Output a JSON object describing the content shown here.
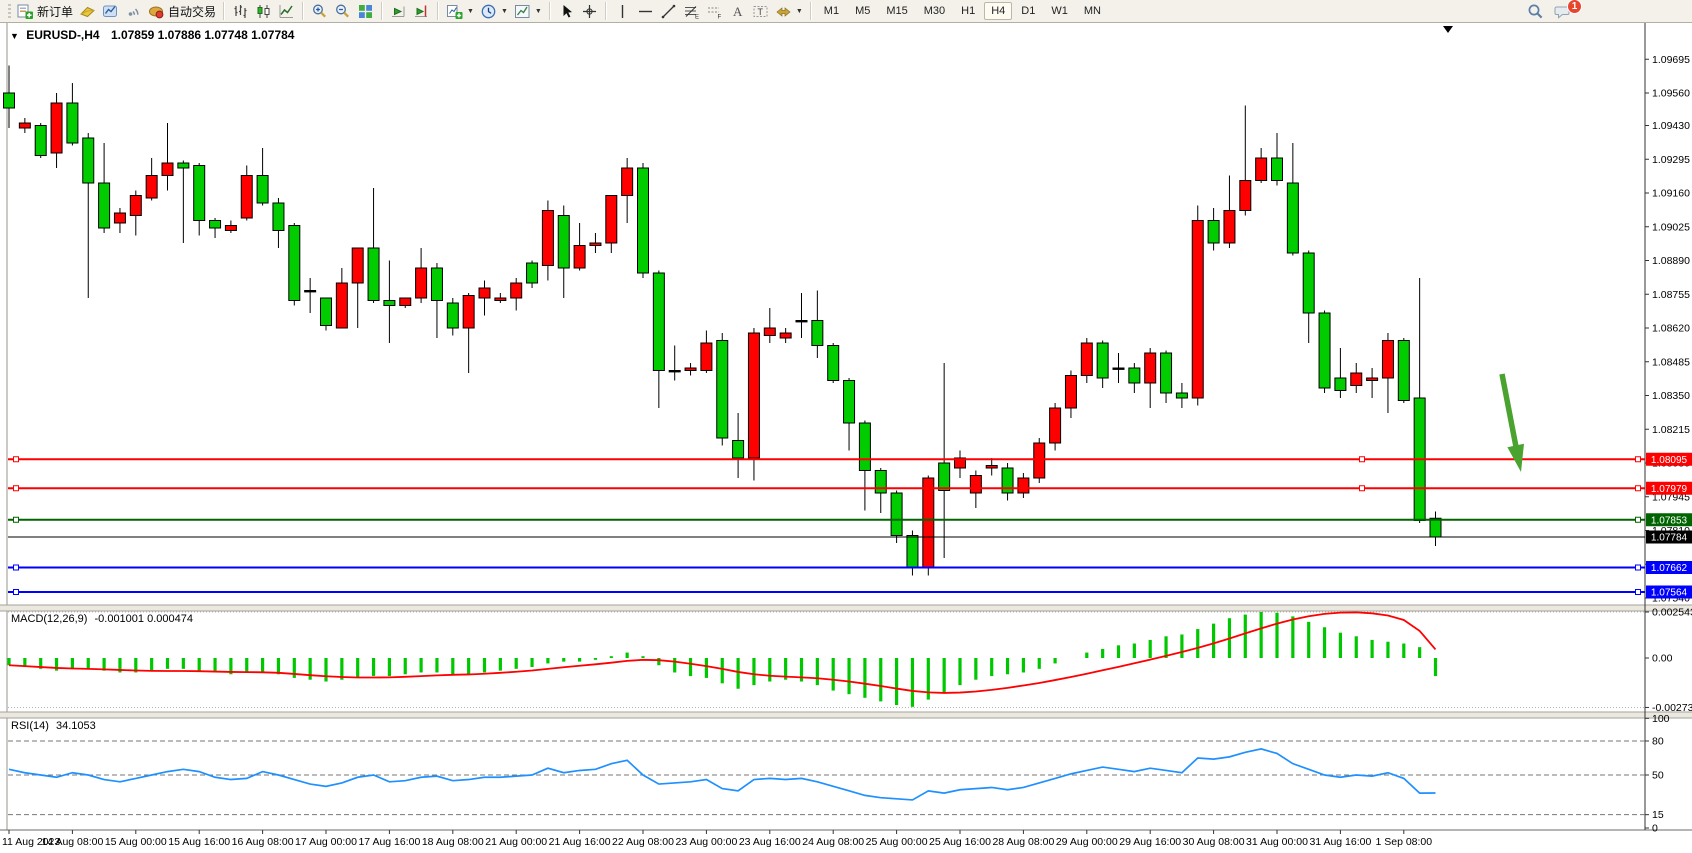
{
  "toolbar": {
    "groups": [
      [
        {
          "icon": "new-order-icon",
          "label": "新订单"
        },
        {
          "icon": "ticket-icon"
        },
        {
          "icon": "charts-cloud-icon"
        },
        {
          "icon": "signal-icon"
        },
        {
          "icon": "auto-trading-icon",
          "label": "自动交易"
        }
      ],
      [
        {
          "icon": "bar-chart-icon"
        },
        {
          "icon": "candlestick-icon"
        },
        {
          "icon": "line-chart-icon"
        }
      ],
      [
        {
          "icon": "zoom-in-icon"
        },
        {
          "icon": "zoom-out-icon"
        },
        {
          "icon": "tile-windows-icon"
        }
      ],
      [
        {
          "icon": "auto-scroll-icon"
        },
        {
          "icon": "chart-shift-icon"
        }
      ],
      [
        {
          "icon": "new-chart-icon",
          "dropdown": true
        },
        {
          "icon": "profiles-icon",
          "dropdown": true
        },
        {
          "icon": "templates-icon",
          "dropdown": true
        }
      ],
      [
        {
          "icon": "cursor-icon"
        },
        {
          "icon": "crosshair-icon"
        }
      ],
      [
        {
          "icon": "vertical-line-icon"
        },
        {
          "icon": "horizontal-line-icon"
        },
        {
          "icon": "trendline-icon"
        },
        {
          "icon": "fibonacci-icon"
        },
        {
          "icon": "equidistant-icon"
        },
        {
          "icon": "text-icon"
        },
        {
          "icon": "label-icon"
        },
        {
          "icon": "arrows-icon",
          "dropdown": true
        }
      ]
    ],
    "timeframes": [
      "M1",
      "M5",
      "M15",
      "M30",
      "H1",
      "H4",
      "D1",
      "W1",
      "MN"
    ],
    "active_timeframe": "H4",
    "notification_count": "1"
  },
  "chart_header": {
    "symbol_period": "EURUSD-,H4",
    "ohlc": "1.07859 1.07886 1.07748 1.07784"
  },
  "indicators": {
    "macd_label": "MACD(12,26,9)",
    "macd_values": "-0.001001 0.000474",
    "rsi_label": "RSI(14)",
    "rsi_value": "34.1053"
  },
  "chart_data": [
    {
      "type": "candlestick",
      "title": "EURUSD-,H4",
      "timeframe": "H4",
      "up_color": "#ff0000",
      "down_color": "#00cc00",
      "note": "Chinese color convention: red = bullish, green = bearish",
      "ylim": [
        1.0754,
        1.097
      ],
      "candles": [
        [
          1.0956,
          1.0967,
          1.0942,
          1.095
        ],
        [
          1.0942,
          1.0946,
          1.094,
          1.0944
        ],
        [
          1.0943,
          1.0944,
          1.093,
          1.0931
        ],
        [
          1.0932,
          1.0956,
          1.0926,
          1.0952
        ],
        [
          1.0952,
          1.096,
          1.0935,
          1.0936
        ],
        [
          1.0938,
          1.094,
          1.0874,
          1.092
        ],
        [
          1.092,
          1.0936,
          1.09,
          1.0902
        ],
        [
          1.0904,
          1.091,
          1.09,
          1.0908
        ],
        [
          1.0907,
          1.0917,
          1.0899,
          1.0915
        ],
        [
          1.0914,
          1.093,
          1.0913,
          1.0923
        ],
        [
          1.0923,
          1.0944,
          1.0917,
          1.0928
        ],
        [
          1.0928,
          1.0929,
          1.0896,
          1.0926
        ],
        [
          1.0927,
          1.0928,
          1.0899,
          1.0905
        ],
        [
          1.0905,
          1.0906,
          1.0898,
          1.0902
        ],
        [
          1.0901,
          1.0905,
          1.09,
          1.0903
        ],
        [
          1.0906,
          1.0927,
          1.0905,
          1.0923
        ],
        [
          1.0923,
          1.0934,
          1.0911,
          1.0912
        ],
        [
          1.0912,
          1.0914,
          1.0894,
          1.0901
        ],
        [
          1.0903,
          1.0904,
          1.0871,
          1.0873
        ],
        [
          1.0877,
          1.0882,
          1.0868,
          1.0877
        ],
        [
          1.0874,
          1.0874,
          1.0861,
          1.0863
        ],
        [
          1.0862,
          1.0886,
          1.0862,
          1.088
        ],
        [
          1.088,
          1.0894,
          1.0862,
          1.0894
        ],
        [
          1.0894,
          1.0918,
          1.0872,
          1.0873
        ],
        [
          1.0873,
          1.0889,
          1.0856,
          1.0871
        ],
        [
          1.0871,
          1.0874,
          1.087,
          1.0874
        ],
        [
          1.0874,
          1.0894,
          1.0872,
          1.0886
        ],
        [
          1.0886,
          1.0888,
          1.0858,
          1.0873
        ],
        [
          1.0872,
          1.0874,
          1.0859,
          1.0862
        ],
        [
          1.0862,
          1.0876,
          1.0844,
          1.0875
        ],
        [
          1.0874,
          1.0881,
          1.0867,
          1.0878
        ],
        [
          1.0873,
          1.0876,
          1.0872,
          1.0874
        ],
        [
          1.0874,
          1.0882,
          1.0869,
          1.088
        ],
        [
          1.0888,
          1.0889,
          1.0878,
          1.088
        ],
        [
          1.0887,
          1.0913,
          1.0881,
          1.0909
        ],
        [
          1.0907,
          1.0911,
          1.0874,
          1.0886
        ],
        [
          1.0886,
          1.0904,
          1.0885,
          1.0895
        ],
        [
          1.0895,
          1.09,
          1.0892,
          1.0896
        ],
        [
          1.0896,
          1.0915,
          1.0892,
          1.0915
        ],
        [
          1.0915,
          1.093,
          1.0904,
          1.0926
        ],
        [
          1.0926,
          1.0928,
          1.0882,
          1.0884
        ],
        [
          1.0884,
          1.0885,
          1.083,
          1.0845
        ],
        [
          1.0845,
          1.0855,
          1.0841,
          1.0845
        ],
        [
          1.0845,
          1.0848,
          1.0843,
          1.0846
        ],
        [
          1.0845,
          1.0861,
          1.0844,
          1.0856
        ],
        [
          1.0857,
          1.086,
          1.0815,
          1.0818
        ],
        [
          1.0817,
          1.0828,
          1.0802,
          1.081
        ],
        [
          1.081,
          1.0862,
          1.0801,
          1.086
        ],
        [
          1.0859,
          1.087,
          1.0856,
          1.0862
        ],
        [
          1.0858,
          1.0862,
          1.0856,
          1.086
        ],
        [
          1.0865,
          1.0876,
          1.0858,
          1.0865
        ],
        [
          1.0865,
          1.0877,
          1.085,
          1.0855
        ],
        [
          1.0855,
          1.0856,
          1.084,
          1.0841
        ],
        [
          1.0841,
          1.0842,
          1.0813,
          1.0824
        ],
        [
          1.0824,
          1.0825,
          1.0789,
          1.0805
        ],
        [
          1.0805,
          1.0806,
          1.0788,
          1.0796
        ],
        [
          1.0796,
          1.0797,
          1.0776,
          1.0779
        ],
        [
          1.0779,
          1.0781,
          1.0763,
          1.0766
        ],
        [
          1.0766,
          1.0803,
          1.0763,
          1.0802
        ],
        [
          1.0808,
          1.0848,
          1.077,
          1.0797
        ],
        [
          1.0806,
          1.0813,
          1.0802,
          1.081
        ],
        [
          1.0796,
          1.0805,
          1.079,
          1.0803
        ],
        [
          1.0806,
          1.081,
          1.0803,
          1.0807
        ],
        [
          1.0806,
          1.0808,
          1.0793,
          1.0796
        ],
        [
          1.0796,
          1.0804,
          1.0794,
          1.0802
        ],
        [
          1.0802,
          1.0818,
          1.08,
          1.0816
        ],
        [
          1.0816,
          1.0832,
          1.0813,
          1.083
        ],
        [
          1.083,
          1.0845,
          1.0826,
          1.0843
        ],
        [
          1.0843,
          1.0858,
          1.084,
          1.0856
        ],
        [
          1.0856,
          1.0857,
          1.0838,
          1.0842
        ],
        [
          1.0846,
          1.0852,
          1.084,
          1.0846
        ],
        [
          1.0846,
          1.0848,
          1.0836,
          1.084
        ],
        [
          1.084,
          1.0854,
          1.083,
          1.0852
        ],
        [
          1.0852,
          1.0853,
          1.0832,
          1.0836
        ],
        [
          1.0836,
          1.084,
          1.083,
          1.0834
        ],
        [
          1.0834,
          1.0911,
          1.0831,
          1.0905
        ],
        [
          1.0905,
          1.091,
          1.0893,
          1.0896
        ],
        [
          1.0896,
          1.0923,
          1.0894,
          1.0909
        ],
        [
          1.0909,
          1.0951,
          1.0907,
          1.0921
        ],
        [
          1.0921,
          1.0934,
          1.092,
          1.093
        ],
        [
          1.093,
          1.094,
          1.0919,
          1.0921
        ],
        [
          1.092,
          1.0936,
          1.0891,
          1.0892
        ],
        [
          1.0892,
          1.0893,
          1.0856,
          1.0868
        ],
        [
          1.0868,
          1.0869,
          1.0836,
          1.0838
        ],
        [
          1.0842,
          1.0854,
          1.0834,
          1.0837
        ],
        [
          1.0839,
          1.0848,
          1.0836,
          1.0844
        ],
        [
          1.0841,
          1.0846,
          1.0834,
          1.0842
        ],
        [
          1.0842,
          1.086,
          1.0828,
          1.0857
        ],
        [
          1.0857,
          1.0858,
          1.0832,
          1.0833
        ],
        [
          1.0834,
          1.0882,
          1.0784,
          1.0785
        ],
        [
          1.07859,
          1.07886,
          1.07748,
          1.07784
        ]
      ],
      "x_labels": [
        "11 Aug 2023",
        "14 Aug 08:00",
        "15 Aug 00:00",
        "15 Aug 16:00",
        "16 Aug 08:00",
        "17 Aug 00:00",
        "17 Aug 16:00",
        "18 Aug 08:00",
        "21 Aug 00:00",
        "21 Aug 16:00",
        "22 Aug 08:00",
        "23 Aug 00:00",
        "23 Aug 16:00",
        "24 Aug 08:00",
        "25 Aug 00:00",
        "25 Aug 16:00",
        "28 Aug 08:00",
        "29 Aug 00:00",
        "29 Aug 16:00",
        "30 Aug 08:00",
        "31 Aug 00:00",
        "31 Aug 16:00",
        "1 Sep 08:00"
      ],
      "y_ticks": [
        "1.09695",
        "1.09560",
        "1.09430",
        "1.09295",
        "1.09160",
        "1.09025",
        "1.08890",
        "1.08755",
        "1.08620",
        "1.08485",
        "1.08350",
        "1.08215",
        "1.08080",
        "1.07945",
        "1.07810",
        "1.07675",
        "1.07540"
      ],
      "price_lines": [
        {
          "price": 1.08095,
          "color": "#ff0000",
          "width": 2,
          "handles": [
            16,
            1362,
            1638
          ]
        },
        {
          "price": 1.07979,
          "color": "#ff0000",
          "width": 2,
          "handles": [
            16,
            1362,
            1638
          ]
        },
        {
          "price": 1.07853,
          "color": "#006400",
          "width": 2,
          "handles": [
            16,
            1638
          ]
        },
        {
          "price": 1.07662,
          "color": "#0000ff",
          "width": 2,
          "handles": [
            16,
            1638
          ]
        },
        {
          "price": 1.07564,
          "color": "#0000ff",
          "width": 2,
          "handles": [
            16,
            1638
          ]
        }
      ],
      "bid_line": {
        "price": 1.07784,
        "color": "#000000"
      },
      "price_badges": [
        {
          "text": "1.08095",
          "price": 1.08095,
          "bg": "#ff0000"
        },
        {
          "text": "1.07979",
          "price": 1.07979,
          "bg": "#ff0000"
        },
        {
          "text": "1.07853",
          "price": 1.07853,
          "bg": "#006400"
        },
        {
          "text": "1.07784",
          "price": 1.07784,
          "bg": "#000000"
        },
        {
          "text": "1.07662",
          "price": 1.07662,
          "bg": "#0000ff"
        },
        {
          "text": "1.07564",
          "price": 1.07564,
          "bg": "#0000ff"
        }
      ],
      "arrow_annotation": {
        "color": "#4aa32f",
        "price_from": 1.0844,
        "price_to": 1.0806
      }
    },
    {
      "type": "bar",
      "name": "MACD",
      "params": "12,26,9",
      "hist_color": "#00c800",
      "signal_color": "#ff0000",
      "y_ticks": [
        "0.002543",
        "0.00",
        "-0.002733"
      ],
      "levels": [
        0.002543,
        -0.002733
      ],
      "last_histogram": -0.001001,
      "last_signal": 0.000474,
      "histogram": [
        -0.0004,
        -0.0005,
        -0.0006,
        -0.0007,
        -0.0006,
        -0.0006,
        -0.0007,
        -0.0008,
        -0.0008,
        -0.0007,
        -0.0006,
        -0.0006,
        -0.0007,
        -0.0008,
        -0.0009,
        -0.0008,
        -0.0008,
        -0.0009,
        -0.0011,
        -0.0012,
        -0.0013,
        -0.0012,
        -0.0011,
        -0.001,
        -0.001,
        -0.0009,
        -0.0008,
        -0.0008,
        -0.0009,
        -0.0009,
        -0.0008,
        -0.0007,
        -0.0006,
        -0.0005,
        -0.0003,
        -0.0002,
        -0.0002,
        -0.0001,
        0.0001,
        0.0003,
        0.0001,
        -0.0004,
        -0.0008,
        -0.001,
        -0.0011,
        -0.0014,
        -0.0017,
        -0.0015,
        -0.0013,
        -0.0012,
        -0.0013,
        -0.0015,
        -0.0018,
        -0.002,
        -0.0022,
        -0.0024,
        -0.0026,
        -0.0027,
        -0.0023,
        -0.0019,
        -0.0015,
        -0.0012,
        -0.001,
        -0.0009,
        -0.0008,
        -0.0006,
        -0.0003,
        0.0,
        0.0003,
        0.0005,
        0.0007,
        0.0008,
        0.001,
        0.0012,
        0.0013,
        0.0016,
        0.0019,
        0.0022,
        0.0024,
        0.002543,
        0.0025,
        0.0023,
        0.002,
        0.0017,
        0.0014,
        0.0012,
        0.001,
        0.0009,
        0.0008,
        0.0006,
        -0.001001
      ],
      "signal": [
        -0.0004,
        -0.00045,
        -0.0005,
        -0.00055,
        -0.00058,
        -0.0006,
        -0.00063,
        -0.00066,
        -0.00069,
        -0.00071,
        -0.00072,
        -0.00072,
        -0.00073,
        -0.00075,
        -0.00077,
        -0.00078,
        -0.00079,
        -0.00082,
        -0.00088,
        -0.00095,
        -0.00101,
        -0.00105,
        -0.00108,
        -0.00108,
        -0.00107,
        -0.00104,
        -0.001,
        -0.00096,
        -0.00093,
        -0.00091,
        -0.00087,
        -0.00082,
        -0.00076,
        -0.00069,
        -0.0006,
        -0.00051,
        -0.00043,
        -0.00035,
        -0.00026,
        -0.00016,
        -0.0001,
        -0.00012,
        -0.0002,
        -0.00032,
        -0.00045,
        -0.0006,
        -0.00077,
        -0.0009,
        -0.00098,
        -0.00103,
        -0.00107,
        -0.00112,
        -0.0012,
        -0.0013,
        -0.00142,
        -0.00155,
        -0.00169,
        -0.00182,
        -0.0019,
        -0.00193,
        -0.00191,
        -0.00185,
        -0.00176,
        -0.00165,
        -0.00152,
        -0.00138,
        -0.00122,
        -0.00105,
        -0.00087,
        -0.00068,
        -0.00049,
        -0.00029,
        -9e-05,
        0.00012,
        0.00033,
        0.00056,
        0.00081,
        0.00108,
        0.00136,
        0.00164,
        0.0019,
        0.00213,
        0.00231,
        0.00244,
        0.00251,
        0.00252,
        0.00247,
        0.00235,
        0.0021,
        0.0015,
        0.000474
      ]
    },
    {
      "type": "line",
      "name": "RSI",
      "params": "14",
      "line_color": "#1e90ff",
      "levels": [
        80,
        50,
        15
      ],
      "y_ticks": [
        "100",
        "80",
        "50",
        "15",
        "0"
      ],
      "last": 34.1053,
      "values": [
        55,
        52,
        50,
        48,
        52,
        50,
        46,
        44,
        47,
        50,
        53,
        55,
        53,
        48,
        46,
        47,
        53,
        50,
        46,
        42,
        40,
        43,
        48,
        50,
        44,
        45,
        48,
        49,
        45,
        46,
        48,
        48,
        49,
        50,
        56,
        52,
        54,
        55,
        60,
        63,
        50,
        42,
        43,
        44,
        46,
        38,
        36,
        46,
        47,
        46,
        47,
        44,
        40,
        36,
        32,
        30,
        29,
        28,
        36,
        34,
        37,
        38,
        39,
        37,
        39,
        43,
        47,
        51,
        54,
        57,
        55,
        53,
        56,
        54,
        52,
        65,
        64,
        66,
        70,
        73,
        69,
        60,
        55,
        50,
        48,
        50,
        49,
        52,
        47,
        34,
        34.1
      ]
    }
  ]
}
